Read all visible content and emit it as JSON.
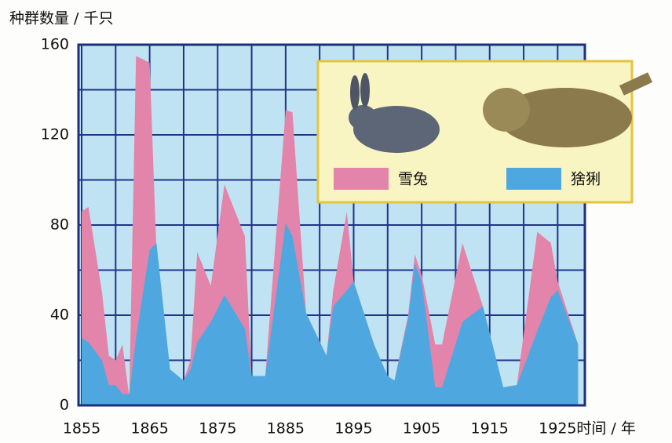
{
  "chart_data": {
    "type": "area",
    "y_label": "种群数量 / 千只",
    "x_label": "时间 / 年",
    "x": [
      1855,
      1856,
      1858,
      1859,
      1860,
      1861,
      1862,
      1863,
      1865,
      1866,
      1868,
      1870,
      1871,
      1872,
      1874,
      1876,
      1879,
      1880,
      1882,
      1885,
      1886,
      1888,
      1891,
      1892,
      1894,
      1895,
      1898,
      1900,
      1901,
      1903,
      1904,
      1905,
      1907,
      1908,
      1911,
      1914,
      1917,
      1919,
      1922,
      1924,
      1925,
      1928
    ],
    "series": [
      {
        "name": "雪兔",
        "color": "#e384aa",
        "values": [
          86,
          88,
          50,
          22,
          20,
          27,
          4,
          155,
          152,
          68,
          14,
          11,
          20,
          68,
          53,
          98,
          75,
          13,
          13,
          131,
          130,
          41,
          22,
          51,
          86,
          55,
          27,
          11,
          11,
          40,
          67,
          58,
          27,
          27,
          72,
          44,
          8,
          9,
          77,
          72,
          55,
          27
        ]
      },
      {
        "name": "猞猁",
        "color": "#4ea8df",
        "values": [
          30,
          28,
          20,
          9,
          9,
          5,
          5,
          30,
          69,
          72,
          16,
          11,
          16,
          28,
          37,
          49,
          34,
          13,
          13,
          81,
          75,
          41,
          22,
          44,
          51,
          55,
          27,
          13,
          11,
          38,
          63,
          55,
          8,
          8,
          37,
          44,
          8,
          9,
          33,
          48,
          51,
          27
        ]
      }
    ],
    "xlim": [
      1855,
      1929
    ],
    "xticks": [
      1855,
      1865,
      1875,
      1885,
      1895,
      1905,
      1915,
      1925
    ],
    "ylim": [
      0,
      160
    ],
    "yticks": [
      0,
      40,
      80,
      120,
      160
    ],
    "grid": true
  }
}
